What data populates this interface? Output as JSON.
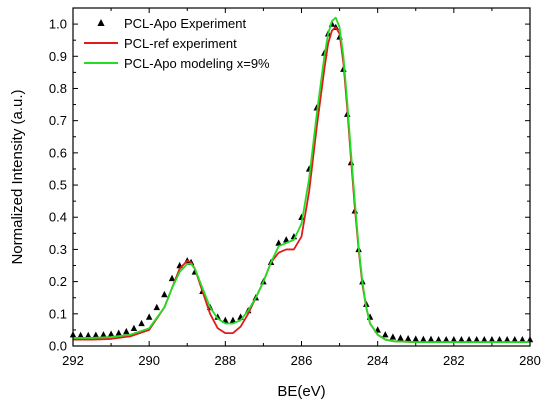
{
  "chart_data": {
    "type": "line",
    "xlabel": "BE(eV)",
    "ylabel": "Normalized Intensity (a.u.)",
    "xlim": [
      292,
      280
    ],
    "ylim": [
      0.0,
      1.05
    ],
    "x_reversed": true,
    "x_ticks": [
      292,
      290,
      288,
      286,
      284,
      282,
      280
    ],
    "x_tick_labels": [
      "292",
      "290",
      "288",
      "286",
      "284",
      "282",
      "280"
    ],
    "y_ticks": [
      0.0,
      0.1,
      0.2,
      0.3,
      0.4,
      0.5,
      0.6,
      0.7,
      0.8,
      0.9,
      1.0
    ],
    "y_tick_labels": [
      "0.0",
      "0.1",
      "0.2",
      "0.3",
      "0.4",
      "0.5",
      "0.6",
      "0.7",
      "0.8",
      "0.9",
      "1.0"
    ],
    "legend_position": "top-left",
    "grid": false,
    "series": [
      {
        "name": "PCL-Apo Experiment",
        "style": "markers",
        "marker": "triangle",
        "color": "#000000",
        "x": [
          292.0,
          291.8,
          291.6,
          291.4,
          291.2,
          291.0,
          290.8,
          290.6,
          290.4,
          290.2,
          290.0,
          289.8,
          289.6,
          289.4,
          289.2,
          289.0,
          288.9,
          288.8,
          288.6,
          288.4,
          288.2,
          288.0,
          287.8,
          287.6,
          287.4,
          287.2,
          287.0,
          286.8,
          286.6,
          286.4,
          286.2,
          286.0,
          285.8,
          285.6,
          285.4,
          285.3,
          285.2,
          285.1,
          285.0,
          284.9,
          284.8,
          284.7,
          284.6,
          284.5,
          284.4,
          284.3,
          284.2,
          284.0,
          283.8,
          283.6,
          283.4,
          283.2,
          283.0,
          282.8,
          282.6,
          282.4,
          282.2,
          282.0,
          281.8,
          281.6,
          281.4,
          281.2,
          281.0,
          280.8,
          280.6,
          280.4,
          280.2,
          280.0
        ],
        "y": [
          0.035,
          0.033,
          0.033,
          0.034,
          0.035,
          0.037,
          0.04,
          0.045,
          0.055,
          0.07,
          0.09,
          0.12,
          0.16,
          0.21,
          0.25,
          0.265,
          0.26,
          0.23,
          0.17,
          0.12,
          0.09,
          0.08,
          0.08,
          0.09,
          0.11,
          0.15,
          0.2,
          0.26,
          0.32,
          0.33,
          0.34,
          0.4,
          0.55,
          0.74,
          0.91,
          0.97,
          1.0,
          0.99,
          0.96,
          0.86,
          0.72,
          0.57,
          0.42,
          0.3,
          0.2,
          0.13,
          0.09,
          0.05,
          0.035,
          0.028,
          0.025,
          0.023,
          0.022,
          0.021,
          0.021,
          0.02,
          0.02,
          0.02,
          0.02,
          0.02,
          0.02,
          0.02,
          0.02,
          0.02,
          0.02,
          0.02,
          0.02,
          0.02
        ]
      },
      {
        "name": "PCL-ref experiment",
        "style": "line",
        "color": "#e01b1b",
        "x": [
          292.0,
          291.5,
          291.0,
          290.5,
          290.0,
          289.6,
          289.4,
          289.2,
          289.0,
          288.9,
          288.8,
          288.6,
          288.4,
          288.2,
          288.0,
          287.8,
          287.6,
          287.4,
          287.2,
          287.0,
          286.8,
          286.6,
          286.4,
          286.2,
          286.0,
          285.8,
          285.6,
          285.4,
          285.3,
          285.2,
          285.1,
          285.0,
          284.9,
          284.8,
          284.7,
          284.6,
          284.5,
          284.4,
          284.3,
          284.2,
          284.0,
          283.8,
          283.6,
          283.0,
          282.0,
          281.0,
          280.0
        ],
        "y": [
          0.02,
          0.02,
          0.022,
          0.03,
          0.05,
          0.12,
          0.18,
          0.24,
          0.265,
          0.26,
          0.24,
          0.17,
          0.1,
          0.055,
          0.04,
          0.04,
          0.06,
          0.1,
          0.15,
          0.2,
          0.26,
          0.29,
          0.3,
          0.3,
          0.34,
          0.48,
          0.68,
          0.86,
          0.94,
          0.98,
          0.99,
          0.97,
          0.88,
          0.74,
          0.58,
          0.43,
          0.3,
          0.19,
          0.12,
          0.07,
          0.035,
          0.02,
          0.015,
          0.012,
          0.012,
          0.012,
          0.012
        ]
      },
      {
        "name": "PCL-Apo modeling x=9%",
        "style": "line",
        "color": "#22dd22",
        "x": [
          292.0,
          291.5,
          291.0,
          290.5,
          290.0,
          289.6,
          289.4,
          289.2,
          289.0,
          288.9,
          288.8,
          288.6,
          288.4,
          288.2,
          288.0,
          287.8,
          287.6,
          287.4,
          287.2,
          287.0,
          286.8,
          286.6,
          286.4,
          286.2,
          286.0,
          285.8,
          285.6,
          285.4,
          285.3,
          285.2,
          285.1,
          285.0,
          284.9,
          284.8,
          284.7,
          284.6,
          284.5,
          284.4,
          284.3,
          284.2,
          284.0,
          283.8,
          283.6,
          283.0,
          282.0,
          281.0,
          280.0
        ],
        "y": [
          0.025,
          0.025,
          0.028,
          0.035,
          0.055,
          0.12,
          0.18,
          0.23,
          0.255,
          0.255,
          0.24,
          0.18,
          0.12,
          0.085,
          0.07,
          0.07,
          0.08,
          0.11,
          0.15,
          0.2,
          0.26,
          0.31,
          0.32,
          0.33,
          0.38,
          0.52,
          0.72,
          0.9,
          0.97,
          1.01,
          1.02,
          0.99,
          0.9,
          0.76,
          0.6,
          0.45,
          0.31,
          0.2,
          0.12,
          0.07,
          0.035,
          0.02,
          0.015,
          0.012,
          0.012,
          0.012,
          0.012
        ]
      }
    ]
  }
}
